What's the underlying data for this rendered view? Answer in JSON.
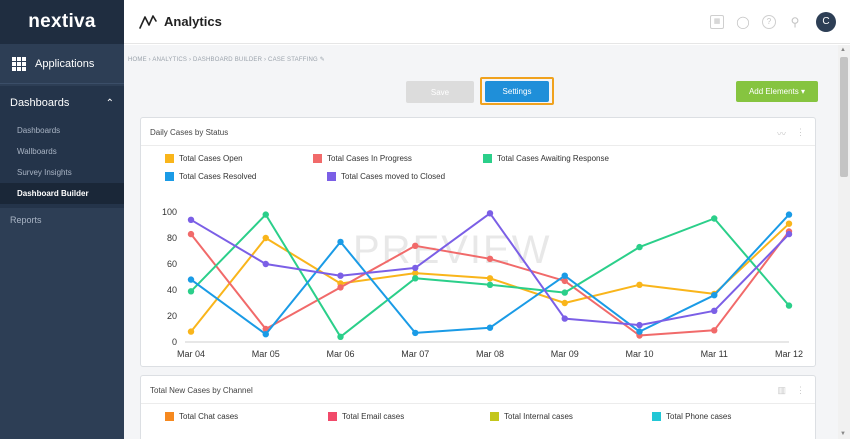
{
  "sidebar": {
    "logo": "nextiva",
    "applications_label": "Applications",
    "dashboards_label": "Dashboards",
    "items": [
      {
        "label": "Dashboards"
      },
      {
        "label": "Wallboards"
      },
      {
        "label": "Survey Insights"
      },
      {
        "label": "Dashboard Builder"
      }
    ],
    "reports_label": "Reports"
  },
  "header": {
    "title": "Analytics",
    "avatar_initial": "C",
    "icons": [
      "calendar-icon",
      "chat-icon",
      "help-icon",
      "wrench-icon"
    ]
  },
  "breadcrumb": "HOME › ANALYTICS › DASHBOARD BUILDER › CASE STAFFING",
  "toolbar": {
    "save_label": "Save",
    "settings_label": "Settings",
    "add_elements_label": "Add Elements ▾"
  },
  "watermark": "PREVIEW",
  "cards": [
    {
      "title": "Daily Cases by Status",
      "legend": [
        {
          "label": "Total Cases Open",
          "color": "#f9b51b"
        },
        {
          "label": "Total Cases In Progress",
          "color": "#f16a6a"
        },
        {
          "label": "Total Cases Awaiting Response",
          "color": "#2bcf8a"
        },
        {
          "label": "Total Cases Resolved",
          "color": "#1a9be6"
        },
        {
          "label": "Total Cases moved to Closed",
          "color": "#7b5fe6"
        }
      ]
    },
    {
      "title": "Total New Cases by Channel",
      "legend": [
        {
          "label": "Total Chat cases",
          "color": "#f6891f"
        },
        {
          "label": "Total Email cases",
          "color": "#f14a6a"
        },
        {
          "label": "Total Internal cases",
          "color": "#c3c61c"
        },
        {
          "label": "Total Phone cases",
          "color": "#22c7d6"
        }
      ]
    }
  ],
  "chart_data": {
    "type": "line",
    "x": [
      "Mar 04",
      "Mar 05",
      "Mar 06",
      "Mar 07",
      "Mar 08",
      "Mar 09",
      "Mar 10",
      "Mar 11",
      "Mar 12"
    ],
    "ylim": [
      0,
      100
    ],
    "yticks": [
      0,
      20,
      40,
      60,
      80,
      100
    ],
    "series": [
      {
        "name": "Total Cases Open",
        "color": "#f9b51b",
        "values": [
          8,
          80,
          45,
          53,
          49,
          30,
          44,
          37,
          91
        ]
      },
      {
        "name": "Total Cases In Progress",
        "color": "#f16a6a",
        "values": [
          83,
          10,
          42,
          74,
          64,
          47,
          5,
          9,
          85
        ]
      },
      {
        "name": "Total Cases Awaiting Response",
        "color": "#2bcf8a",
        "values": [
          39,
          98,
          4,
          49,
          44,
          38,
          73,
          95,
          28
        ]
      },
      {
        "name": "Total Cases Resolved",
        "color": "#1a9be6",
        "values": [
          48,
          6,
          77,
          7,
          11,
          51,
          8,
          36,
          98
        ]
      },
      {
        "name": "Total Cases moved to Closed",
        "color": "#7b5fe6",
        "values": [
          94,
          60,
          51,
          57,
          99,
          18,
          13,
          24,
          83
        ]
      }
    ]
  }
}
